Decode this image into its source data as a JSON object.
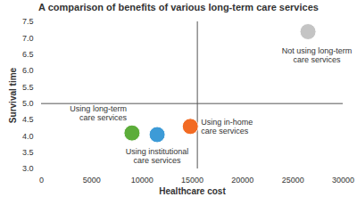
{
  "chart_data": {
    "type": "scatter",
    "title": "A comparison of benefits of various long-term care services",
    "x_label": "Healthcare cost",
    "y_label": "Survival time",
    "xlim": [
      0,
      30000
    ],
    "xticks": [
      0,
      5000,
      10000,
      15000,
      20000,
      25000,
      30000
    ],
    "ylim": [
      3.0,
      7.5
    ],
    "yticks": [
      {
        "value": 3.0,
        "label": "3.0"
      },
      {
        "value": 3.5,
        "label": "3.5"
      },
      {
        "value": 4.0,
        "label": "4.0"
      },
      {
        "value": 4.5,
        "label": "4.5"
      },
      {
        "value": 5.0,
        "label": "5.0"
      },
      {
        "value": 5.5,
        "label": "5.5"
      },
      {
        "value": 6.0,
        "label": "6.0"
      },
      {
        "value": 6.5,
        "label": "6.5"
      },
      {
        "value": 7.0,
        "label": "7.0"
      },
      {
        "value": 7.5,
        "label": "7.5"
      }
    ],
    "reference_lines": {
      "x": 15500,
      "y": 5.0
    },
    "grid": false,
    "series": [
      {
        "name": "Using long-term care services",
        "color": "#5cad3a",
        "x": [
          9000
        ],
        "values": [
          4.1
        ]
      },
      {
        "name": "Using institutional care services",
        "color": "#3d9bd7",
        "x": [
          11500
        ],
        "values": [
          4.05
        ]
      },
      {
        "name": "Using in-home care services",
        "color": "#f26a22",
        "x": [
          14800
        ],
        "values": [
          4.3
        ]
      },
      {
        "name": "Not using long-term care services",
        "color": "#c4c4c4",
        "x": [
          26500
        ],
        "values": [
          7.2
        ]
      }
    ]
  }
}
